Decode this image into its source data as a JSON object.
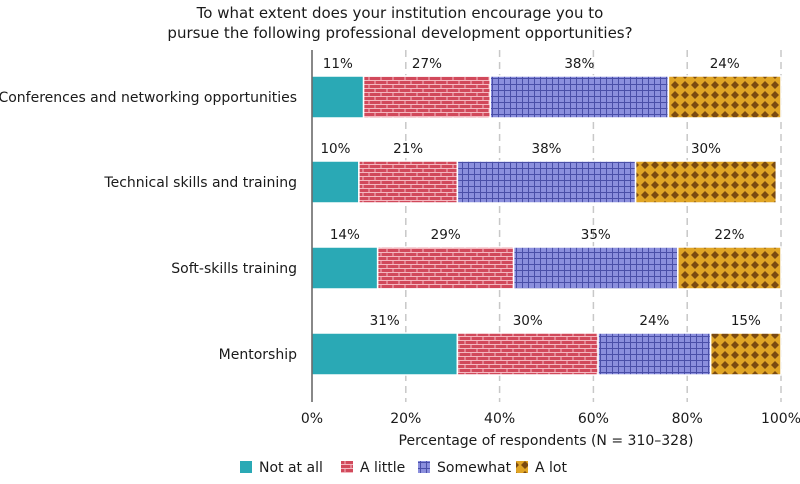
{
  "chart_data": {
    "type": "bar",
    "orientation": "horizontal",
    "stacked": true,
    "title": "To what extent does your institution encourage you to pursue the following professional development opportunities?",
    "title_lines": [
      "To what extent does your institution encourage you to",
      "pursue the following professional development opportunities?"
    ],
    "categories": [
      "Conferences and networking opportunities",
      "Technical skills and training",
      "Soft-skills training",
      "Mentorship"
    ],
    "series": [
      {
        "name": "Not at all",
        "values": [
          11,
          10,
          14,
          31
        ],
        "color": "#2aa9b5",
        "pattern": "solid"
      },
      {
        "name": "A little",
        "values": [
          27,
          21,
          29,
          30
        ],
        "color": "#d1495b",
        "pattern": "brick"
      },
      {
        "name": "Somewhat",
        "values": [
          38,
          38,
          35,
          24
        ],
        "color": "#8b8fdd",
        "pattern": "grid"
      },
      {
        "name": "A lot",
        "values": [
          24,
          30,
          22,
          15
        ],
        "color": "#e0a526",
        "pattern": "diamond"
      }
    ],
    "value_suffix": "%",
    "xlabel": "Percentage of respondents (N = 310–328)",
    "xlim": [
      0,
      100
    ],
    "xticks": [
      "0%",
      "20%",
      "40%",
      "60%",
      "80%",
      "100%"
    ],
    "grid": "vertical-dashed",
    "legend_position": "bottom"
  }
}
